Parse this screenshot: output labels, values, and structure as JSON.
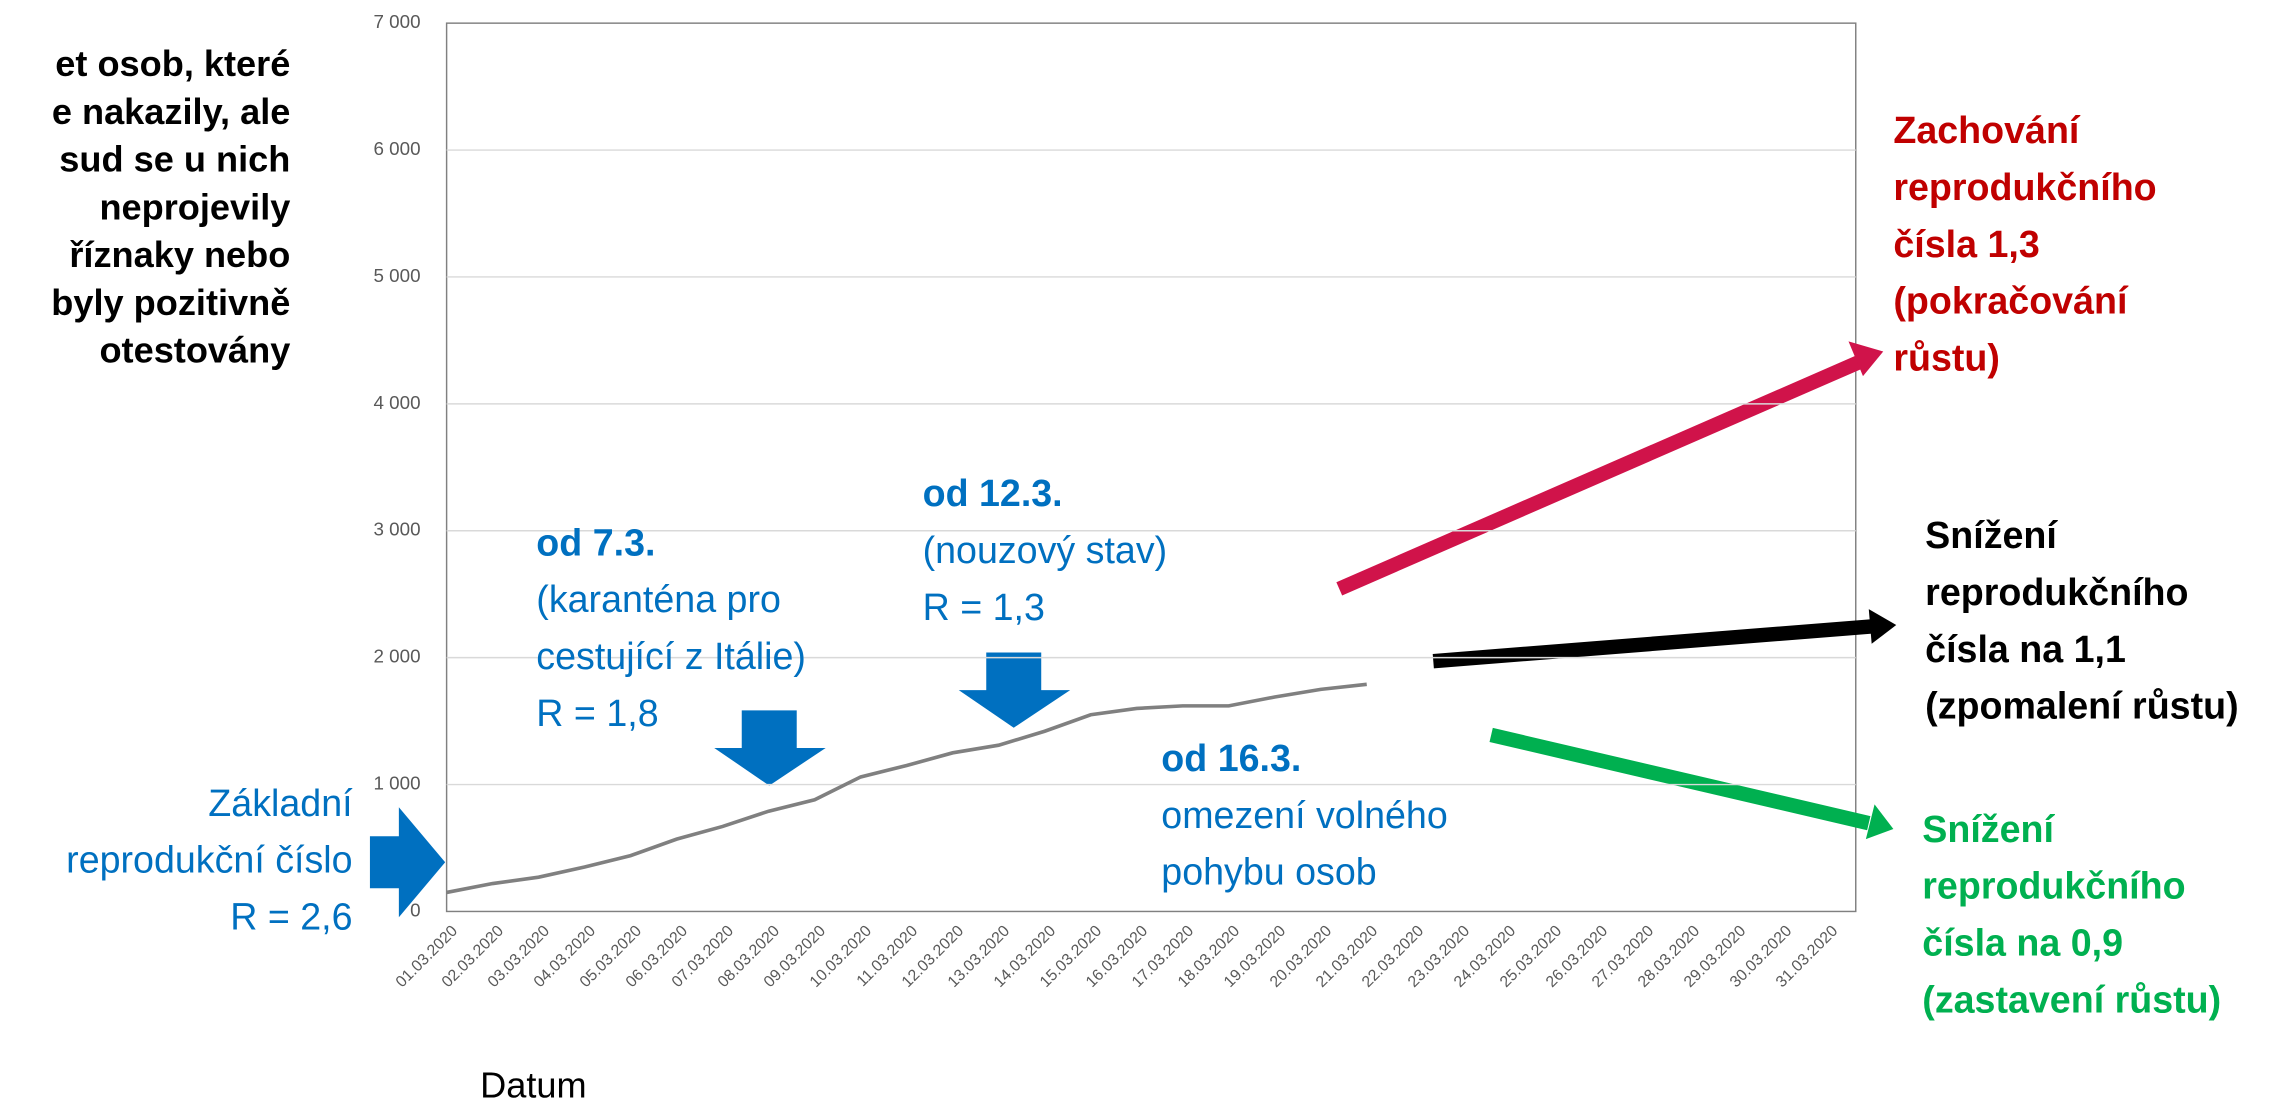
{
  "chart_data": {
    "type": "line",
    "y_label_lines": [
      "et osob, které",
      "e nakazily, ale",
      "sud se u nich",
      "neprojevily",
      "říznaky nebo",
      "byly pozitivně",
      "otestovány"
    ],
    "x_label": "Datum",
    "categories": [
      "01.03.2020",
      "02.03.2020",
      "03.03.2020",
      "04.03.2020",
      "05.03.2020",
      "06.03.2020",
      "07.03.2020",
      "08.03.2020",
      "09.03.2020",
      "10.03.2020",
      "11.03.2020",
      "12.03.2020",
      "13.03.2020",
      "14.03.2020",
      "15.03.2020",
      "16.03.2020",
      "17.03.2020",
      "18.03.2020",
      "19.03.2020",
      "20.03.2020",
      "21.03.2020",
      "22.03.2020",
      "23.03.2020",
      "24.03.2020",
      "25.03.2020",
      "26.03.2020",
      "27.03.2020",
      "28.03.2020",
      "29.03.2020",
      "30.03.2020",
      "31.03.2020"
    ],
    "series": [
      {
        "color": "#808080",
        "values": [
          150,
          220,
          270,
          350,
          440,
          570,
          670,
          790,
          880,
          1060,
          1150,
          1250,
          1310,
          1420,
          1550,
          1600,
          1620,
          1620,
          1690,
          1750,
          1790,
          null,
          null,
          null,
          null,
          null,
          null,
          null,
          null,
          null,
          null
        ]
      }
    ],
    "ylim": [
      0,
      7000
    ],
    "yticks": [
      0,
      {
        "value": 1000,
        "label": "1 000"
      },
      {
        "value": 2000,
        "label": "2 000"
      },
      {
        "value": 3000,
        "label": "3 000"
      },
      {
        "value": 4000,
        "label": "4 000"
      },
      {
        "value": 5000,
        "label": "5 000"
      },
      {
        "value": 6000,
        "label": "6 000"
      },
      {
        "value": 7000,
        "label": "7 000"
      }
    ],
    "grid": true,
    "annotations": [
      {
        "color": "#0070c0",
        "lines": [
          "Základní",
          "reprodukční číslo",
          "R = 2,6"
        ]
      },
      {
        "color": "#0070c0",
        "lines": [
          "od 7.3.",
          "(karanténa pro",
          "cestující z Itálie)",
          "R = 1,8"
        ]
      },
      {
        "color": "#0070c0",
        "lines": [
          "od 12.3.",
          "(nouzový stav)",
          "R = 1,3"
        ]
      },
      {
        "color": "#0070c0",
        "lines": [
          "od 16.3.",
          "omezení volného",
          "pohybu osob"
        ]
      },
      {
        "color": "#c00000",
        "lines": [
          "Zachování",
          "reprodukčního",
          "čísla 1,3",
          "(pokračování",
          "růstu)"
        ]
      },
      {
        "color": "#000000",
        "lines": [
          "Snížení",
          "reprodukčního",
          "čísla na 1,1",
          "(zpomalení růstu)"
        ]
      },
      {
        "color": "#00b050",
        "lines": [
          "Snížení",
          "reprodukčního",
          "čísla na 0,9",
          "(zastavení růstu)"
        ]
      }
    ]
  }
}
